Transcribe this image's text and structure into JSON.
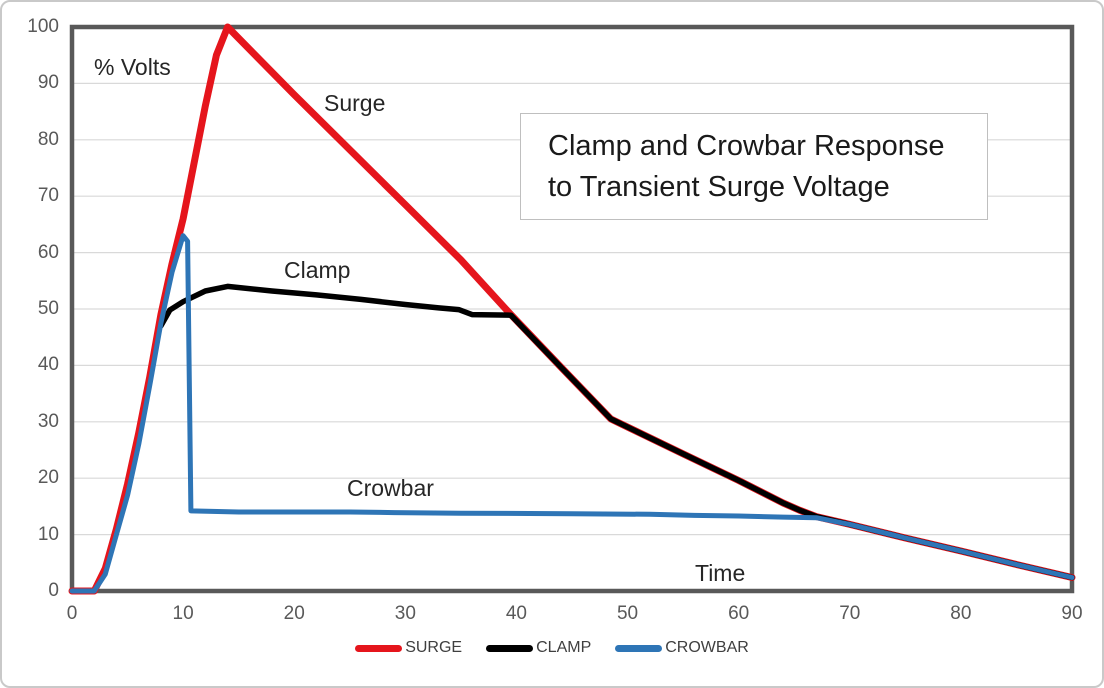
{
  "chart_data": {
    "type": "line",
    "title": "Clamp and Crowbar Response to Transient Surge Voltage",
    "title_lines": [
      "Clamp and Crowbar Response",
      "to Transient Surge Voltage"
    ],
    "xlabel": "Time",
    "ylabel": "% Volts",
    "xlim": [
      0,
      90
    ],
    "ylim": [
      0,
      100
    ],
    "x_ticks": [
      0,
      10,
      20,
      30,
      40,
      50,
      60,
      70,
      80,
      90
    ],
    "y_ticks": [
      0,
      10,
      20,
      30,
      40,
      50,
      60,
      70,
      80,
      90,
      100
    ],
    "grid": "horizontal",
    "legend_position": "bottom-center",
    "annotations": {
      "surge": "Surge",
      "clamp": "Clamp",
      "crowbar": "Crowbar"
    },
    "series": [
      {
        "name": "SURGE",
        "color": "#e5151c",
        "points": [
          [
            0,
            0
          ],
          [
            2,
            0
          ],
          [
            3,
            4
          ],
          [
            4,
            11
          ],
          [
            5,
            19
          ],
          [
            6,
            28
          ],
          [
            7,
            38
          ],
          [
            8,
            49
          ],
          [
            9,
            58
          ],
          [
            10,
            66
          ],
          [
            11,
            76
          ],
          [
            12,
            86
          ],
          [
            13,
            95
          ],
          [
            14,
            100
          ],
          [
            20,
            88
          ],
          [
            30,
            68.5
          ],
          [
            35,
            58.7
          ],
          [
            39.5,
            49
          ],
          [
            44,
            39.7
          ],
          [
            48.5,
            30.5
          ],
          [
            55,
            24.3
          ],
          [
            60,
            19.6
          ],
          [
            64,
            15.6
          ],
          [
            65.5,
            14.3
          ],
          [
            67,
            13.2
          ],
          [
            70,
            11.8
          ],
          [
            75,
            9.4
          ],
          [
            80,
            7.1
          ],
          [
            85,
            4.7
          ],
          [
            90,
            2.4
          ]
        ]
      },
      {
        "name": "CLAMP",
        "color": "#000000",
        "points": [
          [
            8,
            47
          ],
          [
            8.8,
            49.8
          ],
          [
            10,
            51.3
          ],
          [
            12,
            53.2
          ],
          [
            14,
            54
          ],
          [
            18,
            53.2
          ],
          [
            22,
            52.5
          ],
          [
            26,
            51.7
          ],
          [
            30,
            50.8
          ],
          [
            33,
            50.2
          ],
          [
            34.8,
            49.9
          ],
          [
            36,
            49
          ],
          [
            39.5,
            48.9
          ],
          [
            44,
            39.7
          ],
          [
            48.5,
            30.5
          ],
          [
            55,
            24.3
          ],
          [
            60,
            19.6
          ],
          [
            64,
            15.6
          ],
          [
            65.5,
            14.3
          ],
          [
            67,
            13.2
          ],
          [
            70,
            11.8
          ],
          [
            75,
            9.4
          ],
          [
            80,
            7.1
          ],
          [
            85,
            4.7
          ],
          [
            90,
            2.4
          ]
        ]
      },
      {
        "name": "CROWBAR",
        "color": "#2e75b6",
        "points": [
          [
            0,
            0
          ],
          [
            2,
            0
          ],
          [
            3,
            3
          ],
          [
            4,
            10
          ],
          [
            5,
            17
          ],
          [
            6,
            26
          ],
          [
            7,
            36.5
          ],
          [
            8,
            47.5
          ],
          [
            9,
            56.5
          ],
          [
            10,
            63
          ],
          [
            10.4,
            62
          ],
          [
            10.7,
            14.2
          ],
          [
            15,
            14
          ],
          [
            25,
            14
          ],
          [
            29,
            13.9
          ],
          [
            35,
            13.8
          ],
          [
            45,
            13.7
          ],
          [
            52,
            13.6
          ],
          [
            56,
            13.4
          ],
          [
            60,
            13.3
          ],
          [
            64,
            13.1
          ],
          [
            67,
            13
          ],
          [
            70,
            11.8
          ],
          [
            75,
            9.4
          ],
          [
            80,
            7.1
          ],
          [
            85,
            4.7
          ],
          [
            90,
            2.4
          ]
        ]
      }
    ]
  },
  "colors": {
    "plot_border": "#595959",
    "gridline": "#d9d9d9",
    "tick_text": "#595959",
    "annotation_text": "#262626",
    "legend_text": "#3f3f3f",
    "title_border": "#bfbfbf",
    "frame_border": "#c9c9c9",
    "background": "#ffffff"
  }
}
